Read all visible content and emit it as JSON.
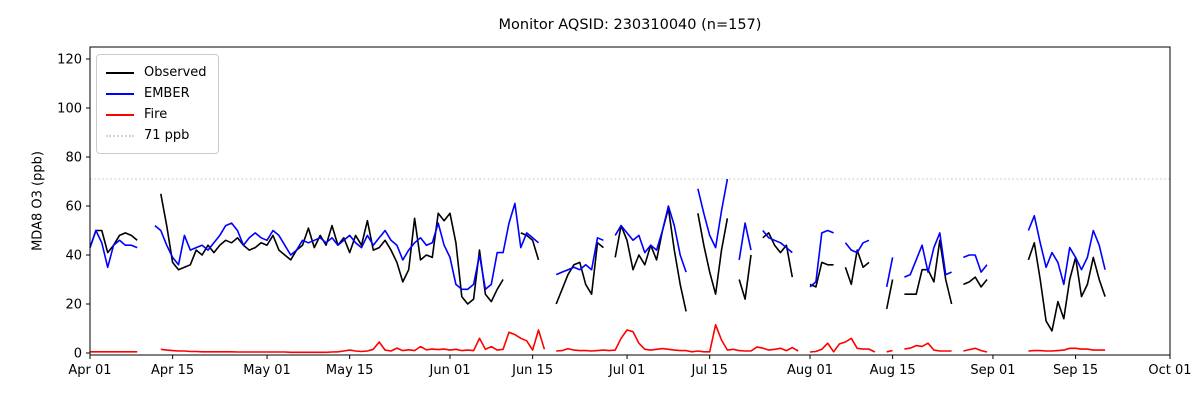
{
  "chart_data": {
    "type": "line",
    "title": "Monitor AQSID: 230310040 (n=157)",
    "ylabel": "MDA8 O3 (ppb)",
    "xlabel": "",
    "x_start_label": "Apr 01",
    "x_total_days": 183,
    "x_ticks": [
      {
        "label": "Apr 01",
        "day": 0
      },
      {
        "label": "Apr 15",
        "day": 14
      },
      {
        "label": "May 01",
        "day": 30
      },
      {
        "label": "May 15",
        "day": 44
      },
      {
        "label": "Jun 01",
        "day": 61
      },
      {
        "label": "Jun 15",
        "day": 75
      },
      {
        "label": "Jul 01",
        "day": 91
      },
      {
        "label": "Jul 15",
        "day": 105
      },
      {
        "label": "Aug 01",
        "day": 122
      },
      {
        "label": "Aug 15",
        "day": 136
      },
      {
        "label": "Sep 01",
        "day": 153
      },
      {
        "label": "Sep 15",
        "day": 167
      },
      {
        "label": "Oct 01",
        "day": 183
      }
    ],
    "y_ticks": [
      0,
      20,
      40,
      60,
      80,
      100,
      120
    ],
    "ylim": [
      -1,
      125
    ],
    "grid": false,
    "legend_position": "upper-left",
    "threshold": {
      "label": "71 ppb",
      "value": 71,
      "color": "#d3d3d3",
      "style": "dotted"
    },
    "series": [
      {
        "name": "Observed",
        "color": "#000000",
        "values": [
          43,
          50,
          50,
          41,
          44,
          48,
          49,
          48,
          46,
          null,
          null,
          null,
          65,
          52,
          37,
          34,
          35,
          36,
          42,
          40,
          44,
          41,
          44,
          46,
          45,
          47,
          44,
          42,
          43,
          45,
          44,
          48,
          42,
          40,
          38,
          42,
          44,
          51,
          43,
          48,
          44,
          52,
          44,
          47,
          41,
          48,
          44,
          54,
          42,
          43,
          46,
          42,
          37,
          29,
          34,
          55,
          38,
          40,
          39,
          57,
          54,
          57,
          45,
          23,
          20,
          22,
          42,
          24,
          21,
          26,
          30,
          null,
          null,
          49,
          48,
          46,
          38,
          null,
          null,
          20,
          26,
          32,
          36,
          37,
          28,
          24,
          45,
          43,
          null,
          39,
          52,
          46,
          34,
          40,
          36,
          44,
          38,
          50,
          59,
          42,
          28,
          17,
          null,
          57,
          44,
          33,
          24,
          42,
          55,
          null,
          30,
          22,
          40,
          null,
          47,
          49,
          44,
          41,
          44,
          31,
          null,
          null,
          28,
          27,
          37,
          36,
          36,
          null,
          35,
          28,
          42,
          35,
          37,
          null,
          null,
          18,
          30,
          null,
          24,
          24,
          24,
          34,
          34,
          29,
          46,
          30,
          20,
          null,
          28,
          29,
          31,
          27,
          30,
          null,
          null,
          null,
          null,
          null,
          null,
          38,
          45,
          30,
          13,
          9,
          21,
          14,
          30,
          39,
          23,
          28,
          39,
          30,
          23
        ]
      },
      {
        "name": "EMBER",
        "color": "#0000ff",
        "values": [
          43,
          50,
          45,
          35,
          44,
          46,
          44,
          44,
          43,
          null,
          null,
          52,
          50,
          44,
          39,
          36,
          48,
          42,
          43,
          44,
          42,
          45,
          48,
          52,
          53,
          50,
          44,
          47,
          49,
          47,
          46,
          50,
          48,
          44,
          40,
          42,
          46,
          45,
          46,
          47,
          45,
          47,
          44,
          46,
          48,
          45,
          43,
          48,
          44,
          47,
          50,
          46,
          44,
          38,
          42,
          45,
          47,
          44,
          45,
          53,
          44,
          39,
          28,
          26,
          26,
          28,
          40,
          26,
          28,
          41,
          41,
          53,
          61,
          43,
          49,
          47,
          45,
          null,
          null,
          32,
          33,
          34,
          35,
          34,
          36,
          34,
          47,
          46,
          null,
          48,
          52,
          49,
          46,
          48,
          41,
          44,
          42,
          50,
          60,
          52,
          40,
          33,
          null,
          67,
          57,
          48,
          43,
          58,
          71,
          null,
          38,
          53,
          42,
          null,
          50,
          47,
          46,
          45,
          43,
          41,
          null,
          null,
          27,
          29,
          49,
          50,
          49,
          null,
          45,
          42,
          41,
          45,
          46,
          null,
          null,
          27,
          39,
          null,
          31,
          32,
          38,
          44,
          33,
          43,
          49,
          32,
          33,
          null,
          39,
          40,
          40,
          33,
          36,
          null,
          null,
          null,
          null,
          null,
          null,
          50,
          56,
          45,
          35,
          41,
          37,
          28,
          43,
          39,
          34,
          39,
          50,
          44,
          34
        ]
      },
      {
        "name": "Fire",
        "color": "#ff0000",
        "values": [
          0.5,
          0.5,
          0.5,
          0.5,
          0.5,
          0.5,
          0.5,
          0.5,
          0.5,
          null,
          null,
          null,
          1.5,
          1.2,
          1.0,
          0.8,
          0.8,
          0.6,
          0.6,
          0.5,
          0.5,
          0.5,
          0.5,
          0.5,
          0.5,
          0.4,
          0.4,
          0.4,
          0.4,
          0.4,
          0.4,
          0.4,
          0.4,
          0.4,
          0.3,
          0.3,
          0.3,
          0.3,
          0.3,
          0.3,
          0.3,
          0.4,
          0.5,
          0.8,
          1.2,
          0.8,
          0.6,
          0.8,
          1.5,
          4.5,
          1.2,
          0.8,
          2.0,
          1.0,
          1.3,
          1.0,
          2.6,
          1.3,
          1.6,
          1.4,
          1.6,
          1.2,
          1.5,
          1.0,
          1.2,
          1.0,
          6.0,
          1.5,
          2.6,
          1.2,
          1.5,
          8.5,
          7.5,
          6.0,
          5.0,
          1.2,
          9.4,
          1.5,
          null,
          0.8,
          1.0,
          1.8,
          1.2,
          1.0,
          1.0,
          0.8,
          1.0,
          1.2,
          1.0,
          1.2,
          6.0,
          9.4,
          8.7,
          4.0,
          1.5,
          1.2,
          1.5,
          1.8,
          1.5,
          1.2,
          1.0,
          1.0,
          0.5,
          0.8,
          0.5,
          0.5,
          11.5,
          5.3,
          1.2,
          1.5,
          1.0,
          0.8,
          0.8,
          2.4,
          2.0,
          1.2,
          1.5,
          1.9,
          1.0,
          2.2,
          0.8,
          null,
          0.4,
          0.6,
          1.5,
          4.0,
          0.5,
          3.7,
          4.5,
          6.0,
          1.9,
          1.6,
          1.6,
          0.4,
          null,
          0.5,
          1.0,
          null,
          1.6,
          2.0,
          3.0,
          2.7,
          4.0,
          1.2,
          0.8,
          0.8,
          0.8,
          null,
          0.8,
          1.4,
          1.9,
          1.0,
          0.4,
          null,
          null,
          null,
          null,
          null,
          null,
          0.8,
          1.0,
          1.0,
          0.8,
          0.8,
          1.0,
          1.2,
          1.9,
          1.9,
          1.6,
          1.6,
          1.2,
          1.2,
          1.2
        ]
      }
    ]
  }
}
